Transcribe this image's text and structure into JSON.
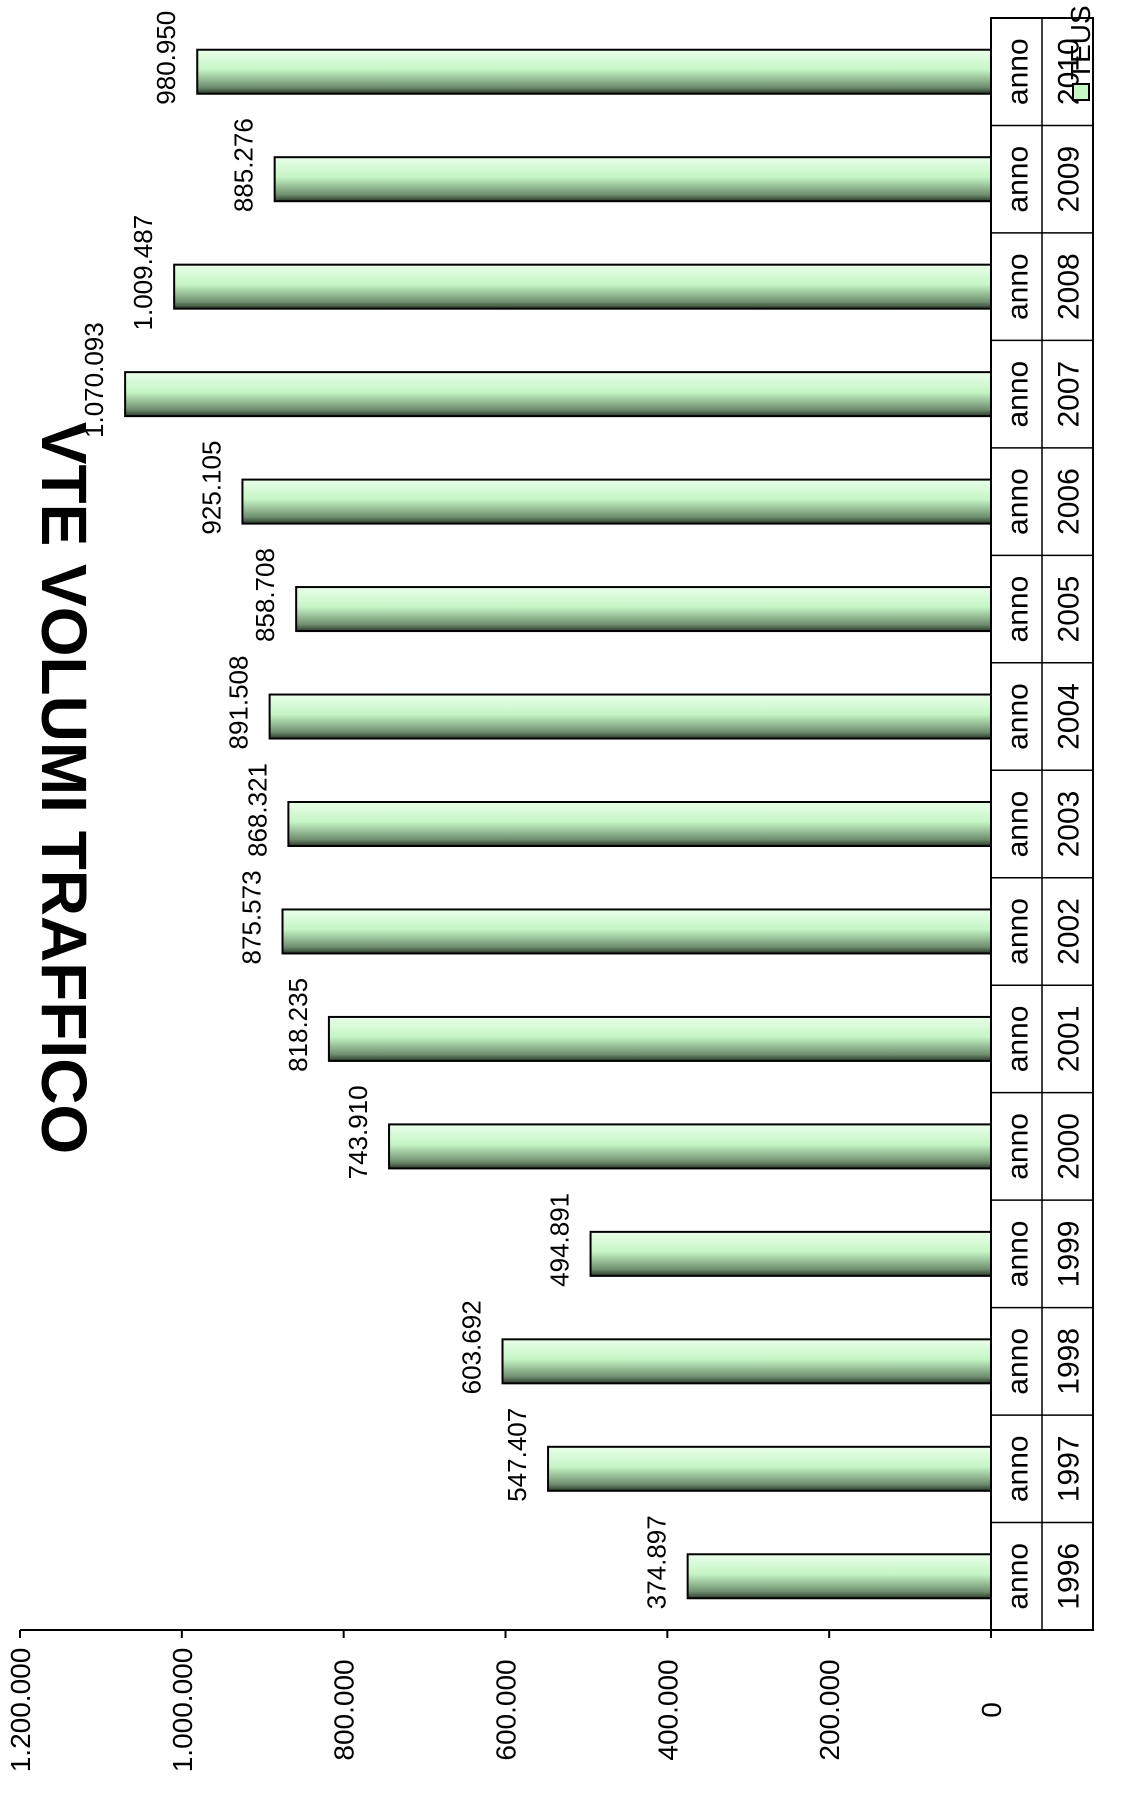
{
  "chart_data": {
    "type": "bar",
    "title": "VTE VOLUMI TRAFFICO",
    "orientation": "rotated-90-clockwise",
    "ylim": [
      0,
      1200000
    ],
    "yticks": [
      "0",
      "200.000",
      "400.000",
      "600.000",
      "800.000",
      "1.000.000",
      "1.200.000"
    ],
    "ytick_values": [
      0,
      200000,
      400000,
      600000,
      800000,
      1000000,
      1200000
    ],
    "grid": false,
    "legend_position": "top-right",
    "category_rows": [
      [
        "anno",
        "anno",
        "anno",
        "anno",
        "anno",
        "anno",
        "anno",
        "anno",
        "anno",
        "anno",
        "anno",
        "anno",
        "anno",
        "anno",
        "anno"
      ],
      [
        "1996",
        "1997",
        "1998",
        "1999",
        "2000",
        "2001",
        "2002",
        "2003",
        "2004",
        "2005",
        "2006",
        "2007",
        "2008",
        "2009",
        "2010"
      ]
    ],
    "categories": [
      "anno 1996",
      "anno 1997",
      "anno 1998",
      "anno 1999",
      "anno 2000",
      "anno 2001",
      "anno 2002",
      "anno 2003",
      "anno 2004",
      "anno 2005",
      "anno 2006",
      "anno 2007",
      "anno 2008",
      "anno 2009",
      "anno 2010"
    ],
    "series": [
      {
        "name": "TEUS",
        "color": "#c6f5c6",
        "values": [
          374897,
          547407,
          603692,
          494891,
          743910,
          818235,
          875573,
          868321,
          891508,
          858708,
          925105,
          1070093,
          1009487,
          885276,
          980950
        ],
        "labels": [
          "374.897",
          "547.407",
          "603.692",
          "494.891",
          "743.910",
          "818.235",
          "875.573",
          "868.321",
          "891.508",
          "858.708",
          "925.105",
          "1.070.093",
          "1.009.487",
          "885.276",
          "980.950"
        ]
      }
    ]
  }
}
